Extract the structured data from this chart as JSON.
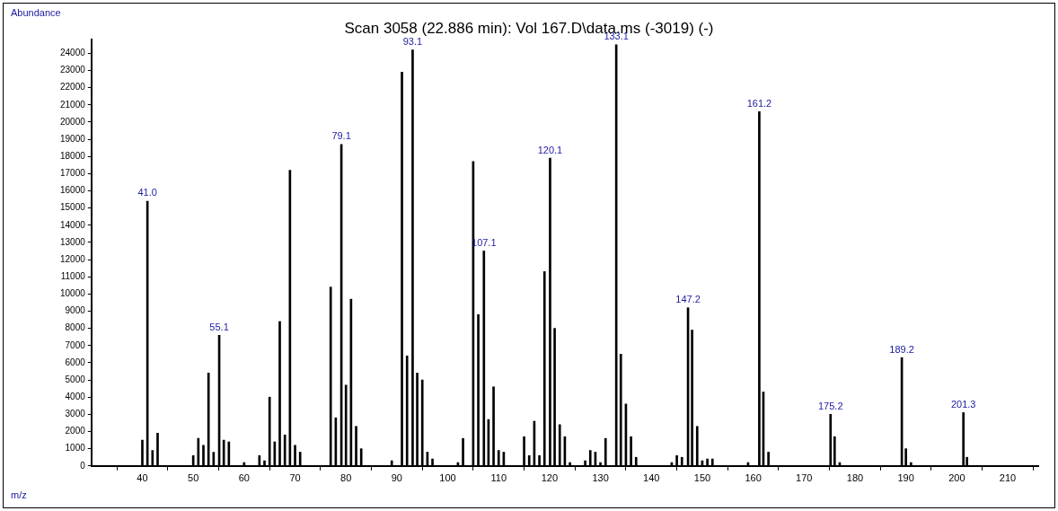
{
  "chart_data": {
    "type": "bar",
    "title": "Scan 3058 (22.886 min): Vol 167.D\\data.ms (-3019) (-)",
    "xlabel": "m/z",
    "ylabel": "Abundance",
    "x": [
      40,
      41.0,
      42,
      43,
      50,
      51,
      52,
      53,
      54,
      55.1,
      56,
      57,
      60,
      63,
      64,
      65,
      66,
      67,
      68,
      69,
      70,
      71,
      77,
      78,
      79.1,
      80,
      81,
      82,
      83,
      89,
      91,
      92,
      93.1,
      94,
      95,
      96,
      97,
      102,
      103,
      105,
      106,
      107.1,
      108,
      109,
      110,
      111,
      115,
      116,
      117,
      118,
      119,
      120.1,
      121,
      122,
      123,
      124,
      127,
      128,
      129,
      130,
      131,
      133.1,
      134,
      135,
      136,
      137,
      144,
      145,
      146,
      147.2,
      148,
      149,
      150,
      151,
      152,
      159,
      161.2,
      162,
      163,
      175.2,
      176,
      177,
      189.2,
      190,
      191,
      201.3,
      202
    ],
    "values": [
      1500,
      15400,
      900,
      1900,
      600,
      1600,
      1200,
      5400,
      800,
      7600,
      1500,
      1400,
      200,
      600,
      300,
      4000,
      1400,
      8400,
      1800,
      17200,
      1200,
      800,
      10400,
      2800,
      18700,
      4700,
      9700,
      2300,
      1000,
      300,
      22900,
      6400,
      24200,
      5400,
      5000,
      800,
      400,
      200,
      1600,
      17700,
      8800,
      12500,
      2700,
      4600,
      900,
      800,
      1700,
      600,
      2600,
      600,
      11300,
      17900,
      8000,
      2400,
      1700,
      200,
      300,
      900,
      800,
      200,
      1600,
      24500,
      6500,
      3600,
      1700,
      500,
      200,
      600,
      500,
      9200,
      7900,
      2300,
      300,
      400,
      400,
      200,
      20600,
      4300,
      800,
      3000,
      1700,
      200,
      6300,
      1000,
      200,
      3100,
      500
    ],
    "color": "#000000",
    "annotations": [
      {
        "text": "41.0",
        "x": 41.0,
        "y": 15400
      },
      {
        "text": "55.1",
        "x": 55.1,
        "y": 7600
      },
      {
        "text": "79.1",
        "x": 79.1,
        "y": 18700
      },
      {
        "text": "93.1",
        "x": 93.1,
        "y": 24200
      },
      {
        "text": "107.1",
        "x": 107.1,
        "y": 12500
      },
      {
        "text": "120.1",
        "x": 120.1,
        "y": 17900
      },
      {
        "text": "133.1",
        "x": 133.1,
        "y": 24500
      },
      {
        "text": "147.2",
        "x": 147.2,
        "y": 9200
      },
      {
        "text": "161.2",
        "x": 161.2,
        "y": 20600
      },
      {
        "text": "175.2",
        "x": 175.2,
        "y": 3000
      },
      {
        "text": "189.2",
        "x": 189.2,
        "y": 6300
      },
      {
        "text": "201.3",
        "x": 201.3,
        "y": 3100
      }
    ],
    "xlim": [
      30,
      216
    ],
    "xticks": [
      40,
      50,
      60,
      70,
      80,
      90,
      100,
      110,
      120,
      130,
      140,
      150,
      160,
      170,
      180,
      190,
      200,
      210
    ],
    "ylim": [
      0,
      24800
    ],
    "yticks": [
      0,
      1000,
      2000,
      3000,
      4000,
      5000,
      6000,
      7000,
      8000,
      9000,
      10000,
      11000,
      12000,
      13000,
      14000,
      15000,
      16000,
      17000,
      18000,
      19000,
      20000,
      21000,
      22000,
      23000,
      24000
    ],
    "grid": false,
    "legend": false
  }
}
